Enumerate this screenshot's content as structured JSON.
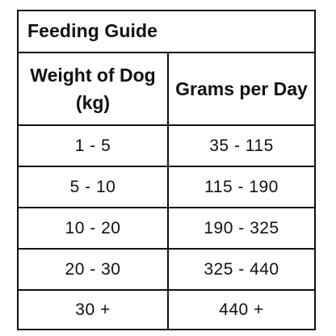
{
  "table": {
    "title": "Feeding Guide",
    "headers": [
      "Weight of Dog (kg)",
      "Grams per Day"
    ],
    "rows": [
      [
        "1 - 5",
        "35 - 115"
      ],
      [
        "5 - 10",
        "115 - 190"
      ],
      [
        "10 - 20",
        "190 - 325"
      ],
      [
        "20 - 30",
        "325 - 440"
      ],
      [
        "30 +",
        "440 +"
      ]
    ]
  },
  "colors": {
    "text": "#111111",
    "border": "#111111",
    "background": "#ffffff"
  }
}
